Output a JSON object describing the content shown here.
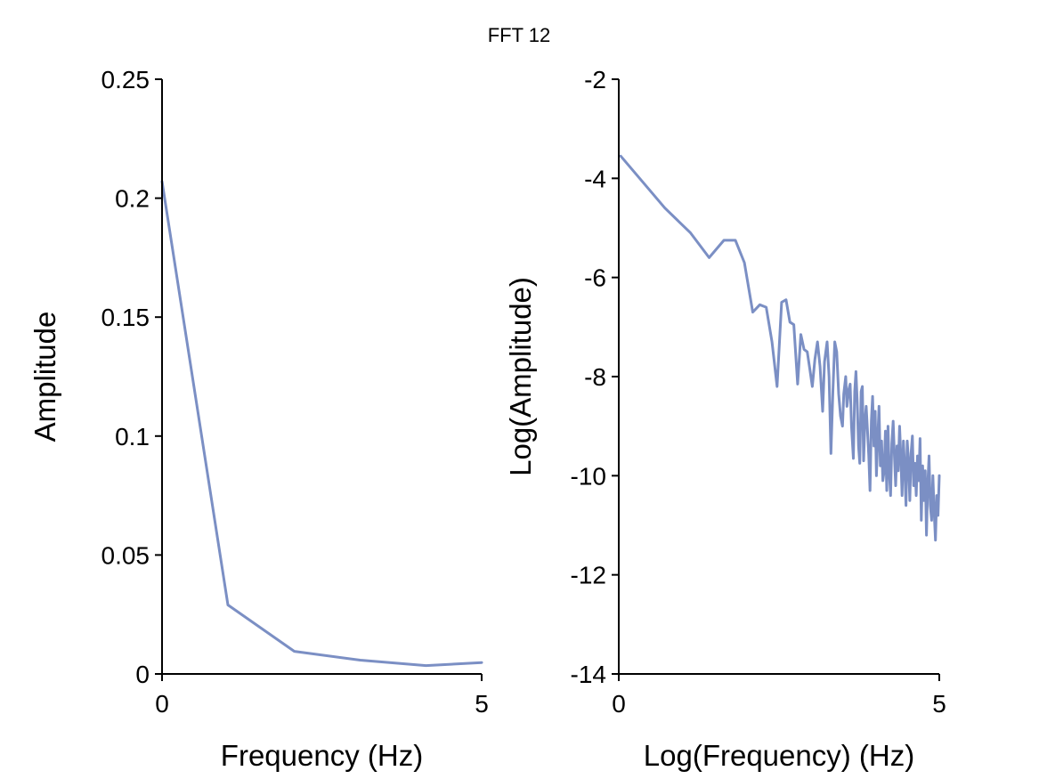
{
  "figure": {
    "title": "FFT 12"
  },
  "chart_data": [
    {
      "type": "line",
      "title": "",
      "xlabel": "Frequency (Hz)",
      "ylabel": "Amplitude",
      "xlim": [
        0,
        5
      ],
      "ylim": [
        0,
        0.25
      ],
      "xticks": [
        0,
        5
      ],
      "xtick_labels": [
        "0",
        "5"
      ],
      "yticks": [
        0,
        0.05,
        0.1,
        0.15,
        0.2,
        0.25
      ],
      "ytick_labels": [
        "0",
        "0.05",
        "0.1",
        "0.15",
        "0.2",
        "0.25"
      ],
      "grid": false,
      "color": "#7b8fc4",
      "x": [
        0,
        1.03,
        2.07,
        3.1,
        4.13,
        5.0
      ],
      "y": [
        0.207,
        0.029,
        0.0095,
        0.0058,
        0.0035,
        0.0048
      ]
    },
    {
      "type": "line",
      "title": "",
      "xlabel": "Log(Frequency) (Hz)",
      "ylabel": "Log(Amplitude)",
      "xlim": [
        0,
        5
      ],
      "ylim": [
        -14,
        -2
      ],
      "xticks": [
        0,
        5
      ],
      "xtick_labels": [
        "0",
        "5"
      ],
      "yticks": [
        -14,
        -12,
        -10,
        -8,
        -6,
        -4,
        -2
      ],
      "ytick_labels": [
        "-14",
        "-12",
        "-10",
        "-8",
        "-6",
        "-4",
        "-2"
      ],
      "grid": false,
      "color": "#7b8fc4",
      "x": [
        0.03,
        0.72,
        1.12,
        1.41,
        1.64,
        1.82,
        1.96,
        2.09,
        2.2,
        2.3,
        2.39,
        2.47,
        2.54,
        2.61,
        2.67,
        2.73,
        2.79,
        2.84,
        2.89,
        2.94,
        2.98,
        3.02,
        3.06,
        3.1,
        3.14,
        3.18,
        3.21,
        3.25,
        3.28,
        3.31,
        3.34,
        3.37,
        3.4,
        3.43,
        3.46,
        3.49,
        3.51,
        3.54,
        3.56,
        3.59,
        3.61,
        3.63,
        3.66,
        3.68,
        3.7,
        3.72,
        3.74,
        3.76,
        3.78,
        3.8,
        3.82,
        3.84,
        3.86,
        3.88,
        3.9,
        3.92,
        3.94,
        3.96,
        3.98,
        4.0,
        4.02,
        4.04,
        4.06,
        4.08,
        4.1,
        4.12,
        4.14,
        4.16,
        4.18,
        4.2,
        4.22,
        4.24,
        4.26,
        4.28,
        4.3,
        4.32,
        4.34,
        4.36,
        4.38,
        4.4,
        4.42,
        4.44,
        4.46,
        4.48,
        4.5,
        4.52,
        4.54,
        4.56,
        4.58,
        4.6,
        4.62,
        4.64,
        4.66,
        4.68,
        4.7,
        4.72,
        4.74,
        4.76,
        4.78,
        4.8,
        4.82,
        4.84,
        4.86,
        4.88,
        4.9,
        4.92,
        4.94,
        4.96,
        4.98,
        5.0
      ],
      "y": [
        -3.55,
        -4.6,
        -5.1,
        -5.6,
        -5.25,
        -5.25,
        -5.7,
        -6.7,
        -6.55,
        -6.6,
        -7.3,
        -8.2,
        -6.5,
        -6.45,
        -6.9,
        -6.95,
        -8.15,
        -7.15,
        -7.45,
        -7.5,
        -7.85,
        -8.2,
        -7.65,
        -7.3,
        -7.8,
        -8.7,
        -7.7,
        -7.3,
        -8.0,
        -9.55,
        -8.3,
        -7.3,
        -7.5,
        -8.35,
        -8.8,
        -9.0,
        -8.35,
        -8.0,
        -8.6,
        -8.25,
        -8.15,
        -9.0,
        -9.65,
        -8.3,
        -7.9,
        -8.5,
        -9.4,
        -9.75,
        -8.3,
        -8.2,
        -9.7,
        -8.9,
        -8.6,
        -9.1,
        -9.6,
        -10.3,
        -8.9,
        -8.4,
        -9.4,
        -8.7,
        -10.0,
        -9.25,
        -8.6,
        -9.8,
        -9.3,
        -10.1,
        -9.9,
        -9.1,
        -10.3,
        -9.0,
        -9.9,
        -10.4,
        -9.35,
        -8.9,
        -9.6,
        -10.2,
        -9.4,
        -9.9,
        -9.0,
        -9.6,
        -10.4,
        -9.3,
        -9.8,
        -10.6,
        -9.3,
        -9.7,
        -10.5,
        -9.55,
        -9.2,
        -10.2,
        -9.75,
        -10.4,
        -9.6,
        -10.1,
        -9.25,
        -10.9,
        -9.8,
        -10.5,
        -9.9,
        -11.2,
        -10.2,
        -9.6,
        -10.6,
        -10.9,
        -10.0,
        -10.7,
        -11.3,
        -10.4,
        -10.8,
        -10.0
      ]
    }
  ]
}
